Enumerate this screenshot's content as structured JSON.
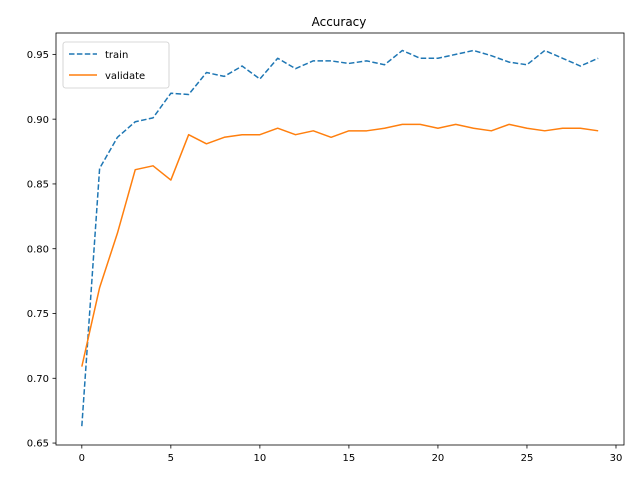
{
  "chart_data": {
    "type": "line",
    "title": "Accuracy",
    "xlabel": "",
    "ylabel": "",
    "xlim": [
      -1.45,
      30.45
    ],
    "ylim": [
      0.6485,
      0.9665
    ],
    "xticks": [
      0,
      5,
      10,
      15,
      20,
      25,
      30
    ],
    "yticks": [
      0.65,
      0.7,
      0.75,
      0.8,
      0.85,
      0.9,
      0.95
    ],
    "grid": false,
    "legend_position": "top-left",
    "x": [
      0,
      1,
      2,
      3,
      4,
      5,
      6,
      7,
      8,
      9,
      10,
      11,
      12,
      13,
      14,
      15,
      16,
      17,
      18,
      19,
      20,
      21,
      22,
      23,
      24,
      25,
      26,
      27,
      28,
      29
    ],
    "series": [
      {
        "name": "train",
        "style": "dashed",
        "color": "#1f77b4",
        "values": [
          0.663,
          0.862,
          0.886,
          0.898,
          0.901,
          0.92,
          0.919,
          0.936,
          0.933,
          0.941,
          0.931,
          0.947,
          0.939,
          0.945,
          0.945,
          0.943,
          0.945,
          0.942,
          0.953,
          0.947,
          0.947,
          0.95,
          0.953,
          0.949,
          0.944,
          0.942,
          0.953,
          0.947,
          0.941,
          0.947
        ]
      },
      {
        "name": "validate",
        "style": "solid",
        "color": "#ff7f0e",
        "values": [
          0.709,
          0.77,
          0.812,
          0.861,
          0.864,
          0.853,
          0.888,
          0.881,
          0.886,
          0.888,
          0.888,
          0.893,
          0.888,
          0.891,
          0.886,
          0.891,
          0.891,
          0.893,
          0.896,
          0.896,
          0.893,
          0.896,
          0.893,
          0.891,
          0.896,
          0.893,
          0.891,
          0.893,
          0.893,
          0.891
        ]
      }
    ]
  }
}
